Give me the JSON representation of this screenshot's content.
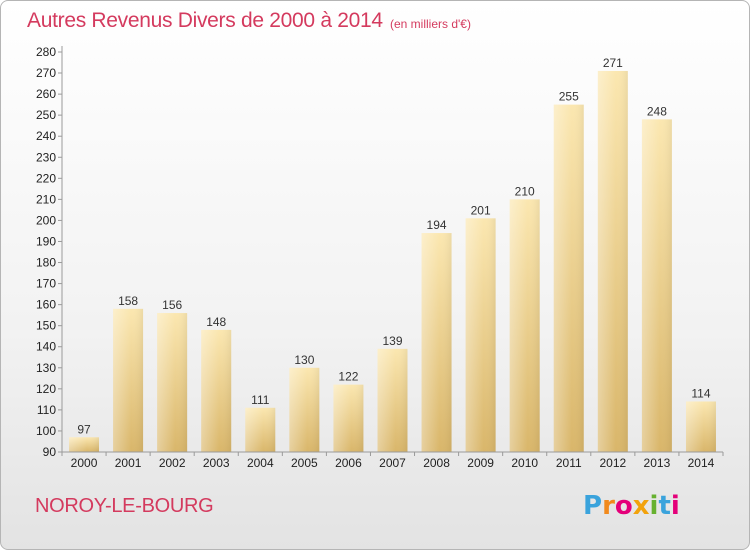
{
  "header": {
    "title": "Autres Revenus Divers de 2000 à 2014",
    "subtitle": "(en milliers d'€)"
  },
  "footer": {
    "town": "NOROY-LE-BOURG",
    "logo": [
      "P",
      "r",
      "o",
      "x",
      "i",
      "t",
      "i"
    ]
  },
  "chart_data": {
    "type": "bar",
    "title": "Autres Revenus Divers de 2000 à 2014",
    "subtitle": "(en milliers d'€)",
    "xlabel": "",
    "ylabel": "",
    "categories": [
      "2000",
      "2001",
      "2002",
      "2003",
      "2004",
      "2005",
      "2006",
      "2007",
      "2008",
      "2009",
      "2010",
      "2011",
      "2012",
      "2013",
      "2014"
    ],
    "values": [
      97,
      158,
      156,
      148,
      111,
      130,
      122,
      139,
      194,
      201,
      210,
      255,
      271,
      248,
      114
    ],
    "ylim": [
      90,
      280
    ],
    "ytick_step": 10,
    "grid": false,
    "colors": {
      "bar_light": "#fbe7b0",
      "bar_dark": "#d9b66a",
      "axis": "#9a9a9a",
      "text_accent": "#d43a5e"
    }
  }
}
